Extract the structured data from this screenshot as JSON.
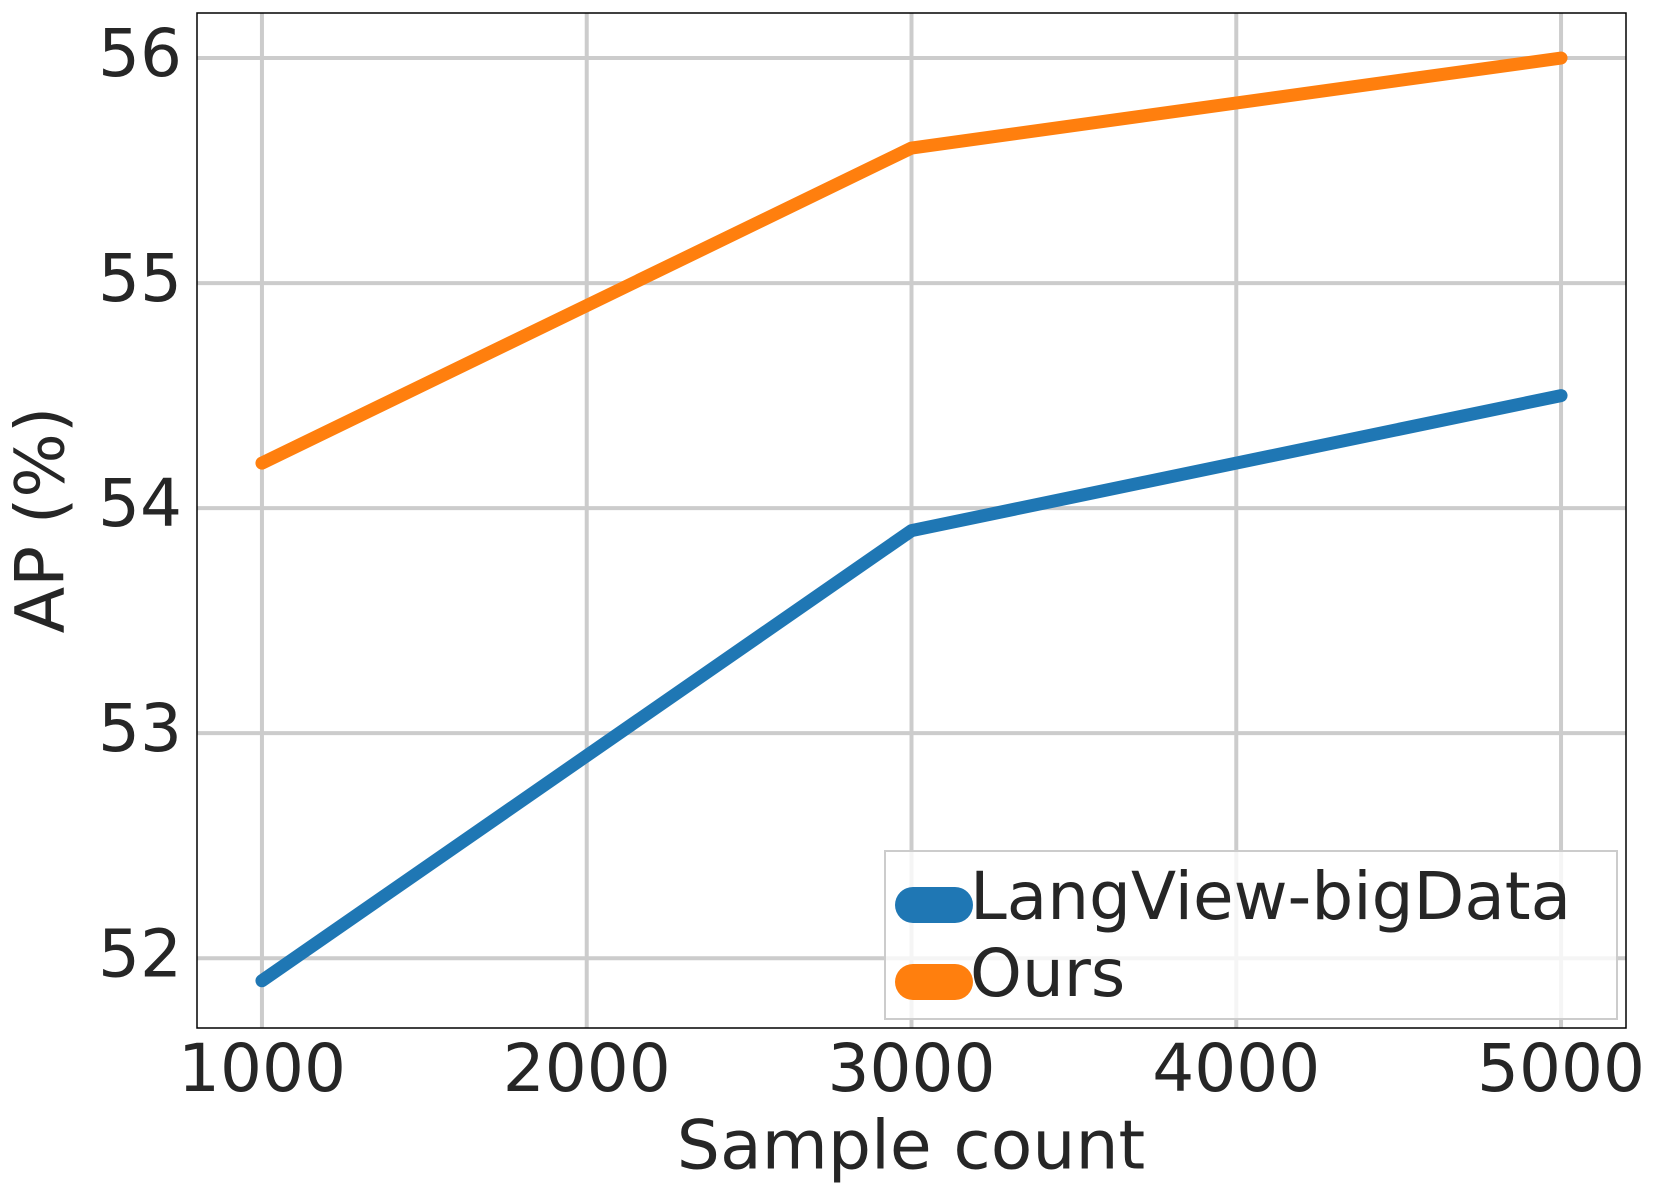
{
  "chart_data": {
    "type": "line",
    "x": [
      1000,
      3000,
      5000
    ],
    "series": [
      {
        "name": "LangView-bigData",
        "color": "#1f77b4",
        "values": [
          51.9,
          53.9,
          54.5
        ]
      },
      {
        "name": "Ours",
        "color": "#ff7f0e",
        "values": [
          54.2,
          55.6,
          56.0
        ]
      }
    ],
    "x_label": "Sample count",
    "y_label": "AP (%)",
    "xlim": [
      800,
      5200
    ],
    "xticks": [
      1000,
      2000,
      3000,
      4000,
      5000
    ],
    "ylim": [
      51.69,
      56.2
    ],
    "yticks": [
      52,
      53,
      54,
      55,
      56
    ],
    "grid": true,
    "legend": "lower right"
  }
}
